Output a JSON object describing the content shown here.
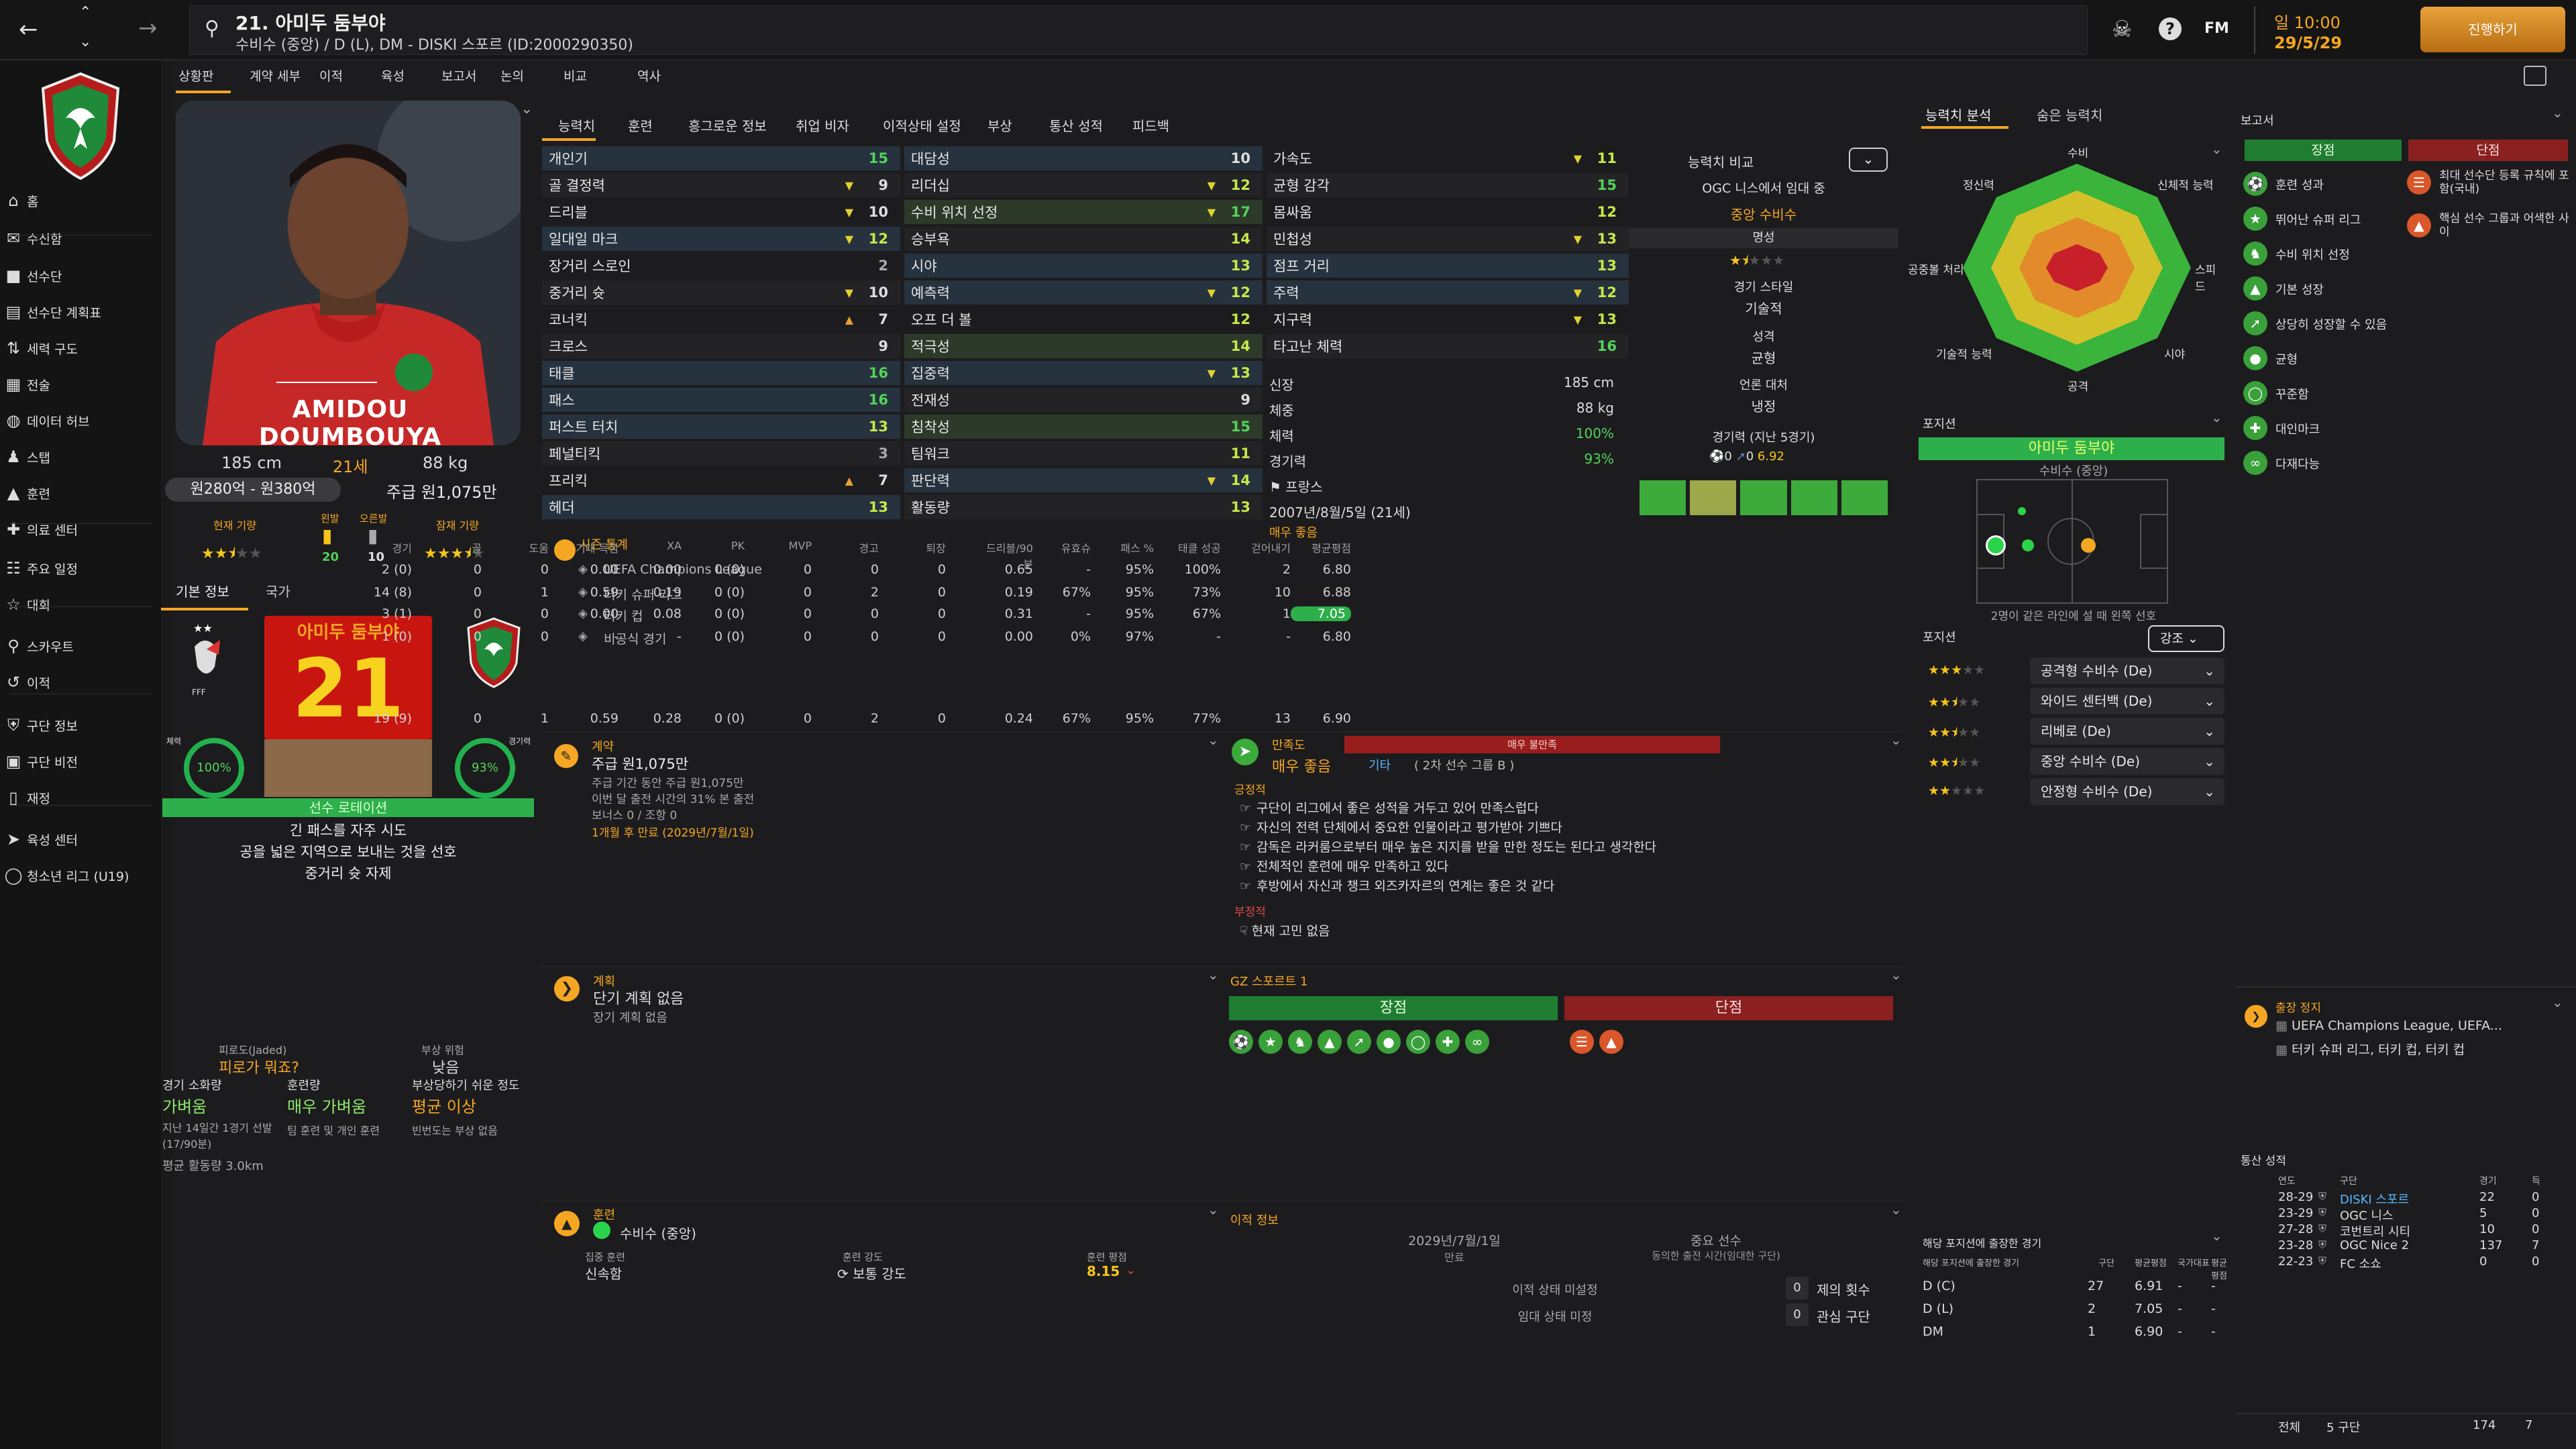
{
  "header": {
    "player_num_name": "21. 아미두 둠부야",
    "subtitle": "수비수 (중앙) / D (L), DM - DISKI 스포르 (ID:2000290350)",
    "date_top": "일 10:00",
    "date_bottom": "29/5/29",
    "continue_label": "진행하기",
    "fm_label": "FM"
  },
  "subtabs": [
    "상황판",
    "계약 세부",
    "이적",
    "육성",
    "보고서",
    "논의",
    "비교",
    "역사"
  ],
  "sidebar": {
    "items": [
      {
        "label": "홈",
        "icon": "home-icon"
      },
      {
        "label": "수신함",
        "icon": "inbox-icon"
      },
      {
        "label": "선수단",
        "icon": "squad-icon"
      },
      {
        "label": "선수단 계획표",
        "icon": "planner-icon"
      },
      {
        "label": "세력 구도",
        "icon": "dynamics-icon"
      },
      {
        "label": "전술",
        "icon": "tactics-icon"
      },
      {
        "label": "데이터 허브",
        "icon": "data-icon"
      },
      {
        "label": "스탭",
        "icon": "staff-icon"
      },
      {
        "label": "훈련",
        "icon": "training-icon"
      },
      {
        "label": "의료 센터",
        "icon": "medical-icon"
      },
      {
        "label": "주요 일정",
        "icon": "calendar-icon"
      },
      {
        "label": "대회",
        "icon": "trophy-icon"
      },
      {
        "label": "스카우트",
        "icon": "scout-icon"
      },
      {
        "label": "이적",
        "icon": "transfer-icon"
      },
      {
        "label": "구단 정보",
        "icon": "club-icon"
      },
      {
        "label": "구단 비전",
        "icon": "vision-icon"
      },
      {
        "label": "재정",
        "icon": "finance-icon"
      },
      {
        "label": "육성 센터",
        "icon": "youth-icon"
      },
      {
        "label": "청소년 리그 (U19)",
        "icon": "u19-icon"
      }
    ]
  },
  "profile": {
    "shirt_name": "AMIDOU DOUMBOUYA",
    "height": "185 cm",
    "age": "21세",
    "weight": "88 kg",
    "value": "원280억 - 원380억",
    "wage": "주급 원1,075만",
    "current_label": "현재 기량",
    "foot_left_label": "왼발",
    "foot_right_label": "오른발",
    "potential_label": "잠재 기량",
    "foot_left_val": "20",
    "foot_right_val": "10",
    "current_stars": 2.5,
    "potential_stars": 3.5
  },
  "card": {
    "tab_basic": "기본 정보",
    "tab_nation": "국가",
    "name": "아미두 둠부야",
    "number": "21",
    "fitness_label": "체력",
    "fitness": "100%",
    "sharp_label": "경기력",
    "sharp": "93%",
    "status": "선수 로테이션",
    "traits": [
      "긴 패스를 자주 시도",
      "공을 넓은 지역으로 보내는 것을 선호",
      "중거리 슛 자제"
    ]
  },
  "condition": {
    "fatigue_label": "피로도(Jaded)",
    "fatigue_val": "피로가 뭐죠?",
    "injury_risk_label": "부상 위험",
    "injury_risk_val": "낮음",
    "load_label": "경기 소화량",
    "load_val": "가벼움",
    "training_label": "훈련량",
    "training_val": "매우 가벼움",
    "prone_label": "부상당하기 쉬운 정도",
    "prone_val": "평균 이상",
    "load_note": "지난 14일간 1경기 선발(17/90분)",
    "training_note": "팀 훈련 및 개인 훈련",
    "prone_note": "빈번도는 부상 없음",
    "distance": "평균 활동량 3.0km"
  },
  "center_tabs": [
    "능력치",
    "훈련",
    "흥그로운 정보",
    "취업 비자",
    "이적상태 설정",
    "부상",
    "통산 성적",
    "피드백"
  ],
  "attrs_col1": [
    [
      "개인기",
      "15",
      ""
    ],
    [
      "골 결정력",
      "9",
      "v"
    ],
    [
      "드리블",
      "10",
      "v"
    ],
    [
      "일대일 마크",
      "12",
      "v"
    ],
    [
      "장거리 스로인",
      "2",
      ""
    ],
    [
      "중거리 슛",
      "10",
      "v"
    ],
    [
      "코너킥",
      "7",
      "^"
    ],
    [
      "크로스",
      "9",
      ""
    ],
    [
      "태클",
      "16",
      ""
    ],
    [
      "패스",
      "16",
      ""
    ],
    [
      "퍼스트 터치",
      "13",
      ""
    ],
    [
      "페널티킥",
      "3",
      ""
    ],
    [
      "프리킥",
      "7",
      "^"
    ],
    [
      "헤더",
      "13",
      ""
    ]
  ],
  "attrs_col2": [
    [
      "대담성",
      "10",
      ""
    ],
    [
      "리더십",
      "12",
      "v"
    ],
    [
      "수비 위치 선정",
      "17",
      "v"
    ],
    [
      "승부욕",
      "14",
      ""
    ],
    [
      "시야",
      "13",
      ""
    ],
    [
      "예측력",
      "12",
      "v"
    ],
    [
      "오프 더 볼",
      "12",
      ""
    ],
    [
      "적극성",
      "14",
      ""
    ],
    [
      "집중력",
      "13",
      "v"
    ],
    [
      "전재성",
      "9",
      ""
    ],
    [
      "침착성",
      "15",
      ""
    ],
    [
      "팀워크",
      "11",
      ""
    ],
    [
      "판단력",
      "14",
      "v"
    ],
    [
      "활동량",
      "13",
      ""
    ]
  ],
  "attrs_col3": [
    [
      "가속도",
      "11",
      "v"
    ],
    [
      "균형 감각",
      "15",
      ""
    ],
    [
      "몸싸움",
      "12",
      ""
    ],
    [
      "민첩성",
      "13",
      "v"
    ],
    [
      "점프 거리",
      "13",
      ""
    ],
    [
      "주력",
      "12",
      "v"
    ],
    [
      "지구력",
      "13",
      "v"
    ],
    [
      "타고난 체력",
      "16",
      ""
    ]
  ],
  "physical": {
    "height_label": "신장",
    "height": "185 cm",
    "weight_label": "체중",
    "weight": "88 kg",
    "fitness_label": "체력",
    "fitness": "100%",
    "sharp_label": "경기력",
    "sharp": "93%",
    "nation": "프랑스",
    "birth": "2007년/8월/5일 (21세)",
    "more": "매우 좋음"
  },
  "compare": {
    "label": "능력치 비교",
    "vs": "OGC 니스에서 임대 중",
    "role": "중앙 수비수",
    "rep_label": "명성",
    "style_label": "경기 스타일",
    "style_val": "기술적",
    "pers_label": "성격",
    "pers_val": "균형",
    "media_label": "언론 대처",
    "media_val": "냉정",
    "form_label": "경기력 (지난 5경기)",
    "form_goals": "0",
    "form_assists": "0",
    "form_rating": "6.92"
  },
  "season": {
    "title": "시즌 통계",
    "cols": [
      "경기",
      "골",
      "도움",
      "기대 득점",
      "XA",
      "PK",
      "MVP",
      "경고",
      "퇴장",
      "드리블/90분",
      "유효슈",
      "패스 %",
      "태클 성공",
      "걷어내기",
      "평균평점"
    ],
    "rows": [
      [
        "UEFA Champions League",
        "2 (0)",
        "0",
        "0",
        "0.00",
        "0.00",
        "0 (0)",
        "0",
        "0",
        "0",
        "0.65",
        "-",
        "95%",
        "100%",
        "2",
        "6.80"
      ],
      [
        "터키 슈퍼 리그",
        "14 (8)",
        "0",
        "1",
        "0.59",
        "0.19",
        "0 (0)",
        "0",
        "2",
        "0",
        "0.19",
        "67%",
        "95%",
        "73%",
        "10",
        "6.88"
      ],
      [
        "터키 컵",
        "3 (1)",
        "0",
        "0",
        "0.00",
        "0.08",
        "0 (0)",
        "0",
        "0",
        "0",
        "0.31",
        "-",
        "95%",
        "67%",
        "1",
        "7.05"
      ],
      [
        "비공식 경기",
        "1 (0)",
        "0",
        "0",
        "-",
        "-",
        "0 (0)",
        "0",
        "0",
        "0",
        "0.00",
        "0%",
        "97%",
        "-",
        "-",
        "6.80"
      ]
    ],
    "total": [
      "19 (9)",
      "0",
      "1",
      "0.59",
      "0.28",
      "0 (0)",
      "0",
      "2",
      "0",
      "0.24",
      "67%",
      "95%",
      "77%",
      "13",
      "6.90"
    ]
  },
  "contract": {
    "title": "계약",
    "wage": "주급 원1,075만",
    "line1": "주급 기간 동안 주급 원1,075만",
    "line2": "이번 달 출전 시간의 31% 본 출전",
    "line3": "보너스 0 / 조항 0",
    "expiry": "1개월 후 만료 (2029년/7월/1일)"
  },
  "happiness": {
    "title": "만족도",
    "bar": "매우 불만족",
    "level": "매우 좋음",
    "group": "기타",
    "group2": "( 2차 선수 그룹 B )",
    "pos_title": "긍정적",
    "pos": [
      "구단이 리그에서 좋은 성적을 거두고 있어 만족스럽다",
      "자신의 전력 단체에서 중요한 인물이라고 평가받아 기쁘다",
      "감독은 라커룸으로부터 매우 높은 지지를 받을 만한 정도는 된다고 생각한다",
      "전체적인 훈련에 매우 만족하고 있다",
      "후방에서 자신과 챙크 외즈카자르의 연계는 좋은 것 같다"
    ],
    "neg_title": "부정적",
    "neg": [
      "현재 고민 없음"
    ]
  },
  "plans": {
    "title": "계획",
    "short": "단기 계획 없음",
    "long": "장기 계획 없음"
  },
  "report": {
    "title": "GZ 스포르트 1",
    "pros": "장점",
    "cons": "단점"
  },
  "training": {
    "title": "훈련",
    "role": "수비수 (중앙)",
    "focus_label": "집중 훈련",
    "focus_val": "신속함",
    "intensity_label": "훈련 강도",
    "intensity_val": "보통 강도",
    "rating_label": "훈련 평점",
    "rating_val": "8.15"
  },
  "transfer": {
    "title": "이적 정보",
    "date": "2029년/7월/1일",
    "date_label": "만료",
    "status": "중요 선수",
    "status_note": "동의한 출전 시간(임대한 구단)",
    "t_status": "이적 상태 미설정",
    "l_status": "임대 상태 미정",
    "offers_label": "제의 횟수",
    "offers": "0",
    "interest_label": "관심 구단",
    "interest": "0"
  },
  "right_tabs": [
    "능력치 분석",
    "숨은 능력치"
  ],
  "radar": {
    "labels": [
      "수비",
      "신체적 능력",
      "스피드",
      "시야",
      "공격",
      "기술적 능력",
      "공중볼 처리",
      "정신력"
    ]
  },
  "position": {
    "title": "포지션",
    "name": "아미두 둠부야",
    "role": "수비수 (중앙)",
    "note": "2명이 같은 라인에 설 때 왼쪽 선호",
    "roles_label": "포지션",
    "dd_label": "강조",
    "roles": [
      [
        "공격형 수비수 (De)",
        3
      ],
      [
        "와이드 센터백 (De)",
        2.5
      ],
      [
        "리베로 (De)",
        2.5
      ],
      [
        "중앙 수비수 (De)",
        2.5
      ],
      [
        "안정형 수비수 (De)",
        2
      ]
    ]
  },
  "pos_stats": {
    "title": "해당 포지션에 출장한 경기",
    "cols": [
      "해당 포지션에 출장한 경기",
      "구단",
      "평균평점",
      "국가대표",
      "평균평점"
    ],
    "rows": [
      [
        "D (C)",
        "27",
        "6.91",
        "-",
        "-"
      ],
      [
        "D (L)",
        "2",
        "7.05",
        "-",
        "-"
      ],
      [
        "DM",
        "1",
        "6.90",
        "-",
        "-"
      ]
    ]
  },
  "reports_panel": {
    "title": "보고서",
    "pros": "장점",
    "cons": "단점",
    "pros_list": [
      {
        "label": "훈련 성과",
        "icon": "training-perf-icon"
      },
      {
        "label": "뛰어난 슈퍼 리그",
        "icon": "star-icon"
      },
      {
        "label": "수비 위치 선정",
        "icon": "positioning-icon"
      },
      {
        "label": "기본 성장",
        "icon": "growth-icon"
      },
      {
        "label": "상당히 성장할 수 있음",
        "icon": "trend-icon"
      },
      {
        "label": "균형",
        "icon": "balance-icon"
      },
      {
        "label": "꾸준함",
        "icon": "consistency-icon"
      },
      {
        "label": "대인마크",
        "icon": "marking-icon"
      },
      {
        "label": "다재다능",
        "icon": "versatile-icon"
      }
    ],
    "cons_list": [
      {
        "label": "최대 선수단 등록 규칙에 포함(국내)",
        "icon": "registration-icon"
      },
      {
        "label": "핵심 선수 그룹과 어색한 사이",
        "icon": "group-icon"
      }
    ]
  },
  "ineligible": {
    "title": "출장 정지",
    "l1": "UEFA Champions League, UEFA...",
    "l2": "터키 슈퍼 리그, 터키 컵, 터키 컵"
  },
  "career": {
    "title": "통산 성적",
    "cols": [
      "연도",
      "구단",
      "경기",
      "득"
    ],
    "rows": [
      [
        "28-29",
        "DISKI 스포르",
        "22",
        "0"
      ],
      [
        "23-29",
        "OGC 니스",
        "5",
        "0"
      ],
      [
        "27-28",
        "코번트리 시티",
        "10",
        "0"
      ],
      [
        "23-28",
        "OGC Nice 2",
        "137",
        "7"
      ],
      [
        "22-23",
        "FC 소쇼",
        "0",
        "0"
      ]
    ],
    "total_label": "전체",
    "total_clubs": "5 구단",
    "total_apps": "174",
    "total_goals": "7"
  },
  "colors": {
    "accent": "#f5a623",
    "green": "#2fb34a",
    "red": "#c43434",
    "bg": "#1c1c1e"
  }
}
